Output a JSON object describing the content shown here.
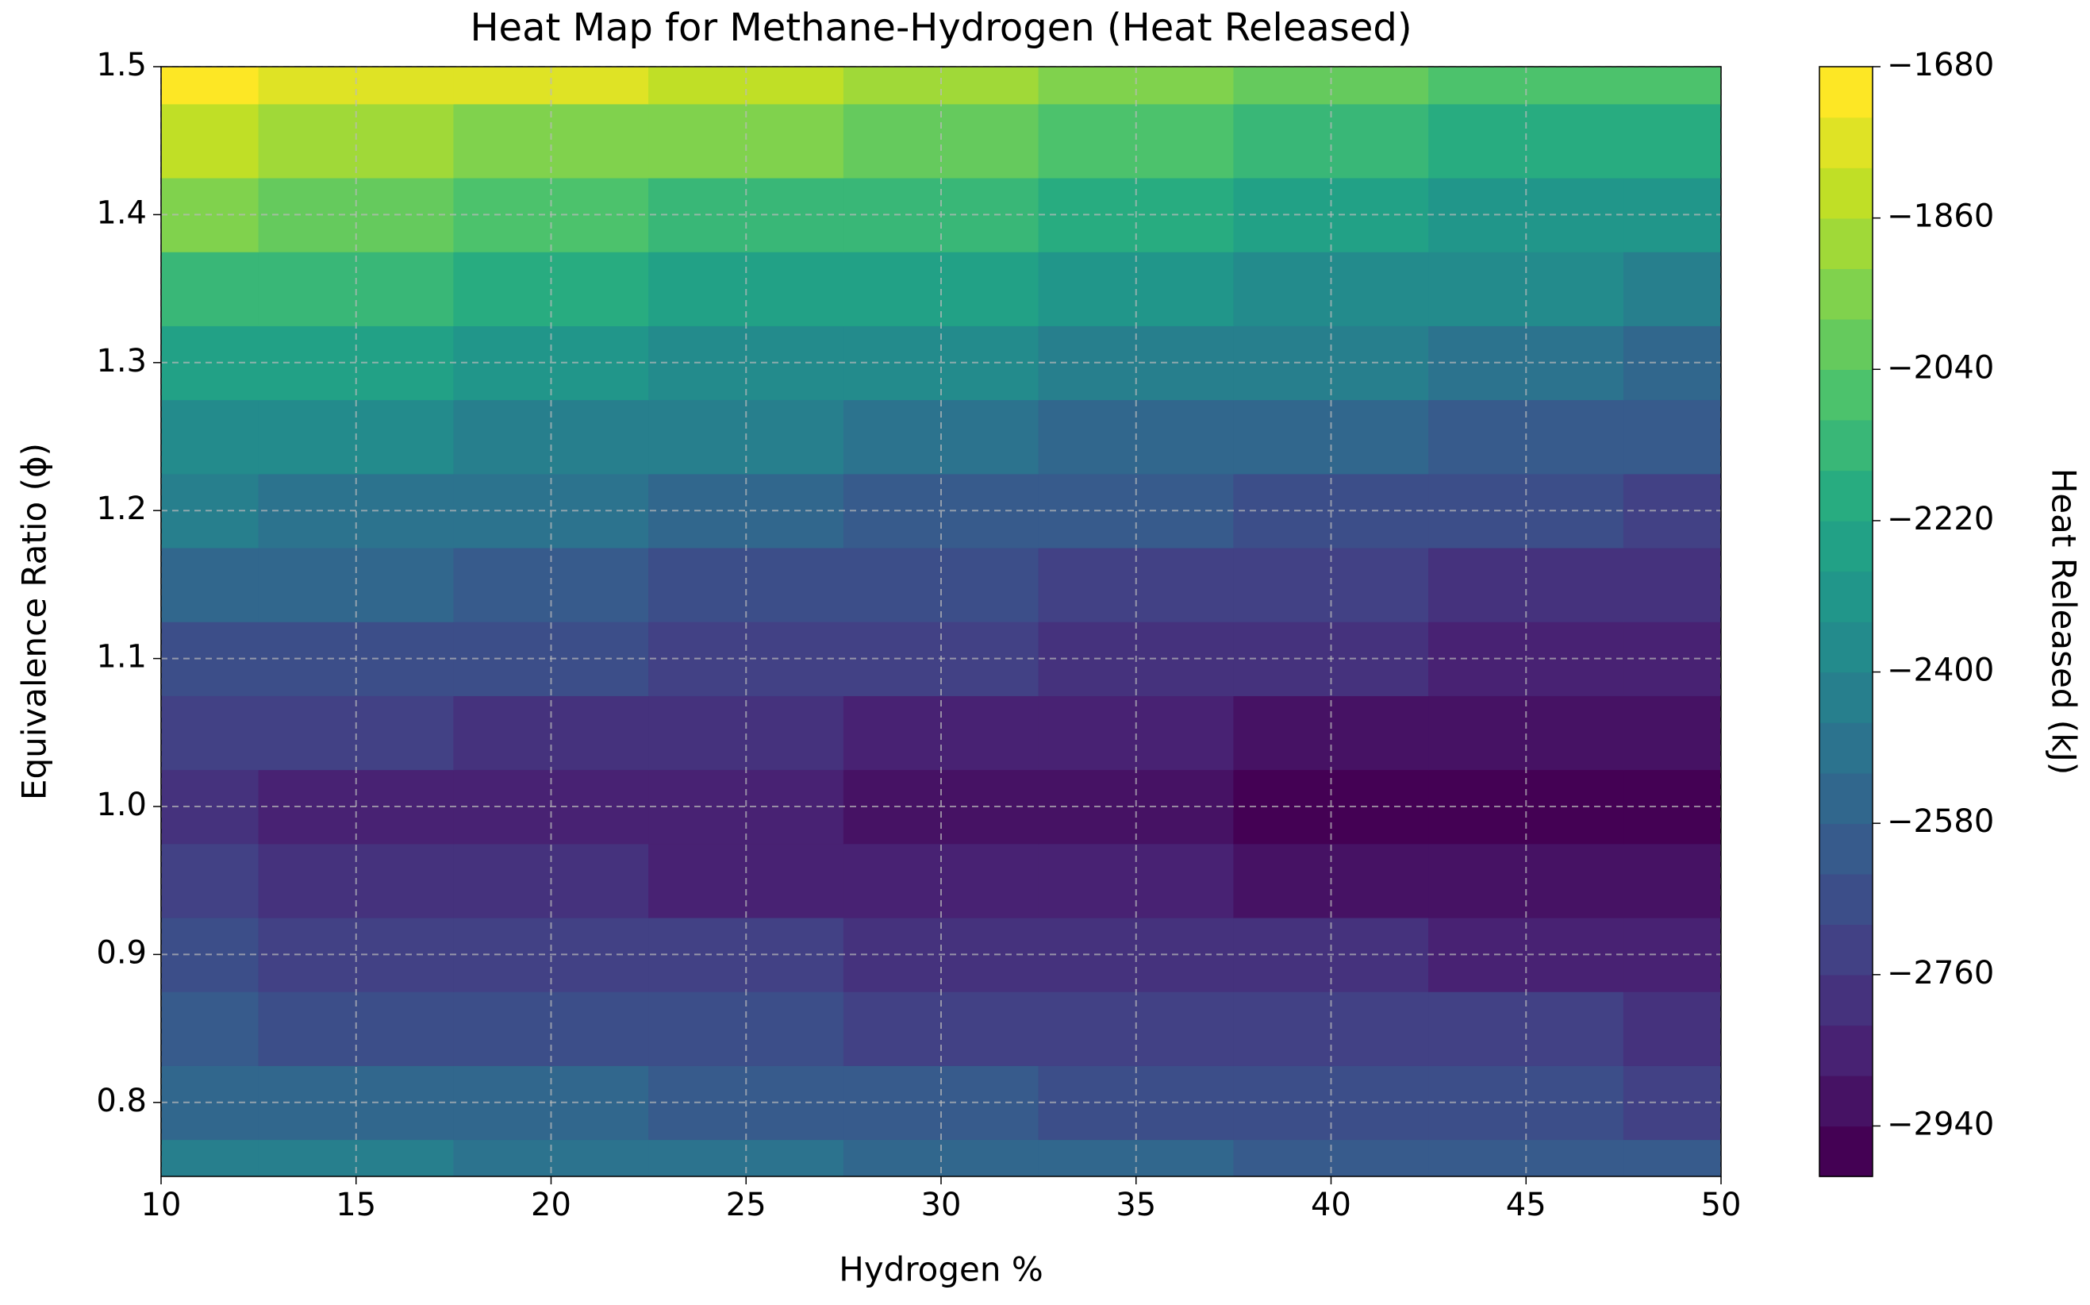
{
  "chart_data": {
    "type": "contourf",
    "title": "Heat Map for Methane-Hydrogen (Heat Released)",
    "xlabel": "Hydrogen %",
    "ylabel": "Equivalence Ratio (ϕ)",
    "x": [
      10,
      15,
      20,
      25,
      30,
      35,
      40,
      45,
      50
    ],
    "y": [
      0.75,
      0.8,
      0.85,
      0.9,
      0.95,
      1.0,
      1.05,
      1.1,
      1.15,
      1.2,
      1.25,
      1.3,
      1.35,
      1.4,
      1.45,
      1.5
    ],
    "values": [
      [
        -2420,
        -2447,
        -2475,
        -2502,
        -2530,
        -2558,
        -2585,
        -2612,
        -2640
      ],
      [
        -2531,
        -2553,
        -2575,
        -2597,
        -2619,
        -2642,
        -2664,
        -2686,
        -2708
      ],
      [
        -2624,
        -2643,
        -2662,
        -2682,
        -2701,
        -2720,
        -2740,
        -2759,
        -2778
      ],
      [
        -2700,
        -2719,
        -2738,
        -2756,
        -2775,
        -2794,
        -2812,
        -2831,
        -2850
      ],
      [
        -2759,
        -2779,
        -2800,
        -2821,
        -2841,
        -2862,
        -2883,
        -2903,
        -2924
      ],
      [
        -2800,
        -2825,
        -2850,
        -2875,
        -2900,
        -2925,
        -2950,
        -2975,
        -3000
      ],
      [
        -2724,
        -2751,
        -2778,
        -2805,
        -2831,
        -2858,
        -2885,
        -2912,
        -2939
      ],
      [
        -2641,
        -2669,
        -2698,
        -2727,
        -2756,
        -2784,
        -2813,
        -2842,
        -2871
      ],
      [
        -2549,
        -2580,
        -2611,
        -2642,
        -2673,
        -2704,
        -2735,
        -2766,
        -2797
      ],
      [
        -2450,
        -2483,
        -2516,
        -2550,
        -2583,
        -2616,
        -2650,
        -2683,
        -2716
      ],
      [
        -2343,
        -2379,
        -2414,
        -2450,
        -2486,
        -2522,
        -2558,
        -2594,
        -2629
      ],
      [
        -2228,
        -2266,
        -2305,
        -2343,
        -2382,
        -2421,
        -2459,
        -2498,
        -2536
      ],
      [
        -2105,
        -2147,
        -2188,
        -2229,
        -2271,
        -2312,
        -2354,
        -2395,
        -2436
      ],
      [
        -1974,
        -2019,
        -2063,
        -2108,
        -2153,
        -2197,
        -2242,
        -2286,
        -2331
      ],
      [
        -1836,
        -1884,
        -1932,
        -1979,
        -2027,
        -2075,
        -2123,
        -2171,
        -2219
      ],
      [
        -1690,
        -1741,
        -1792,
        -1843,
        -1895,
        -1946,
        -1997,
        -2049,
        -2100
      ]
    ],
    "xlim": [
      10,
      50
    ],
    "ylim": [
      0.75,
      1.5
    ],
    "xticks": [
      10,
      15,
      20,
      25,
      30,
      35,
      40,
      45,
      50
    ],
    "yticks": [
      0.8,
      0.9,
      {
        "value": 1.0,
        "label": "1.0"
      },
      1.1,
      1.2,
      1.3,
      1.4,
      1.5
    ],
    "grid": true,
    "colormap": "viridis",
    "levels": [
      -3000,
      -2940,
      -2880,
      -2820,
      -2760,
      -2700,
      -2640,
      -2580,
      -2520,
      -2460,
      -2400,
      -2340,
      -2280,
      -2220,
      -2160,
      -2100,
      -2040,
      -1980,
      -1920,
      -1860,
      -1800,
      -1740,
      -1680
    ],
    "colorbar": {
      "label": "Heat Released (kJ)",
      "ticks": [
        {
          "value": -1680,
          "label": "−1680"
        },
        {
          "value": -1860,
          "label": "−1860"
        },
        {
          "value": -2040,
          "label": "−2040"
        },
        {
          "value": -2220,
          "label": "−2220"
        },
        {
          "value": -2400,
          "label": "−2400"
        },
        {
          "value": -2580,
          "label": "−2580"
        },
        {
          "value": -2760,
          "label": "−2760"
        },
        {
          "value": -2940,
          "label": "−2940"
        }
      ]
    }
  }
}
